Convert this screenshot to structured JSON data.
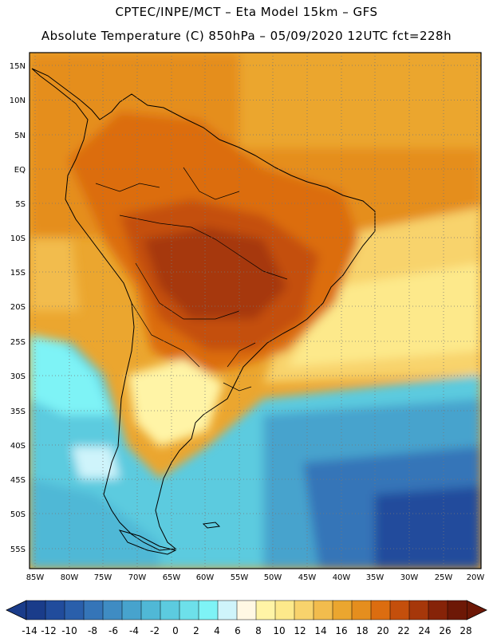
{
  "header": {
    "line1": "CPTEC/INPE/MCT –  Eta Model 15km – GFS",
    "line2": "Absolute Temperature (C) 850hPa – 05/09/2020 12UTC fct=228h"
  },
  "map": {
    "lat_labels": [
      "15N",
      "10N",
      "5N",
      "EQ",
      "5S",
      "10S",
      "15S",
      "20S",
      "25S",
      "30S",
      "35S",
      "40S",
      "45S",
      "50S",
      "55S"
    ],
    "lon_labels": [
      "85W",
      "80W",
      "75W",
      "70W",
      "65W",
      "60W",
      "55W",
      "50W",
      "45W",
      "40W",
      "35W",
      "30W",
      "25W",
      "20W"
    ],
    "region": "South America",
    "field": "Absolute Temperature 850hPa",
    "units": "C"
  },
  "colorbar": {
    "labels": [
      "-14",
      "-12",
      "-10",
      "-8",
      "-6",
      "-4",
      "-2",
      "0",
      "2",
      "4",
      "6",
      "8",
      "10",
      "12",
      "14",
      "16",
      "18",
      "20",
      "22",
      "24",
      "26",
      "28"
    ],
    "colors": [
      "#1a3c8a",
      "#214c9c",
      "#2a5fab",
      "#3575b8",
      "#3f8cc3",
      "#47a3cd",
      "#50b8d6",
      "#5ccbdf",
      "#6de0ea",
      "#7ef3f6",
      "#cff4fb",
      "#fff8e4",
      "#fff4a6",
      "#fde98b",
      "#f8d36c",
      "#f2bc4d",
      "#eba62f",
      "#e58e1e",
      "#dc6d10",
      "#c44f0c",
      "#a6370a",
      "#862308",
      "#6d1806"
    ]
  }
}
